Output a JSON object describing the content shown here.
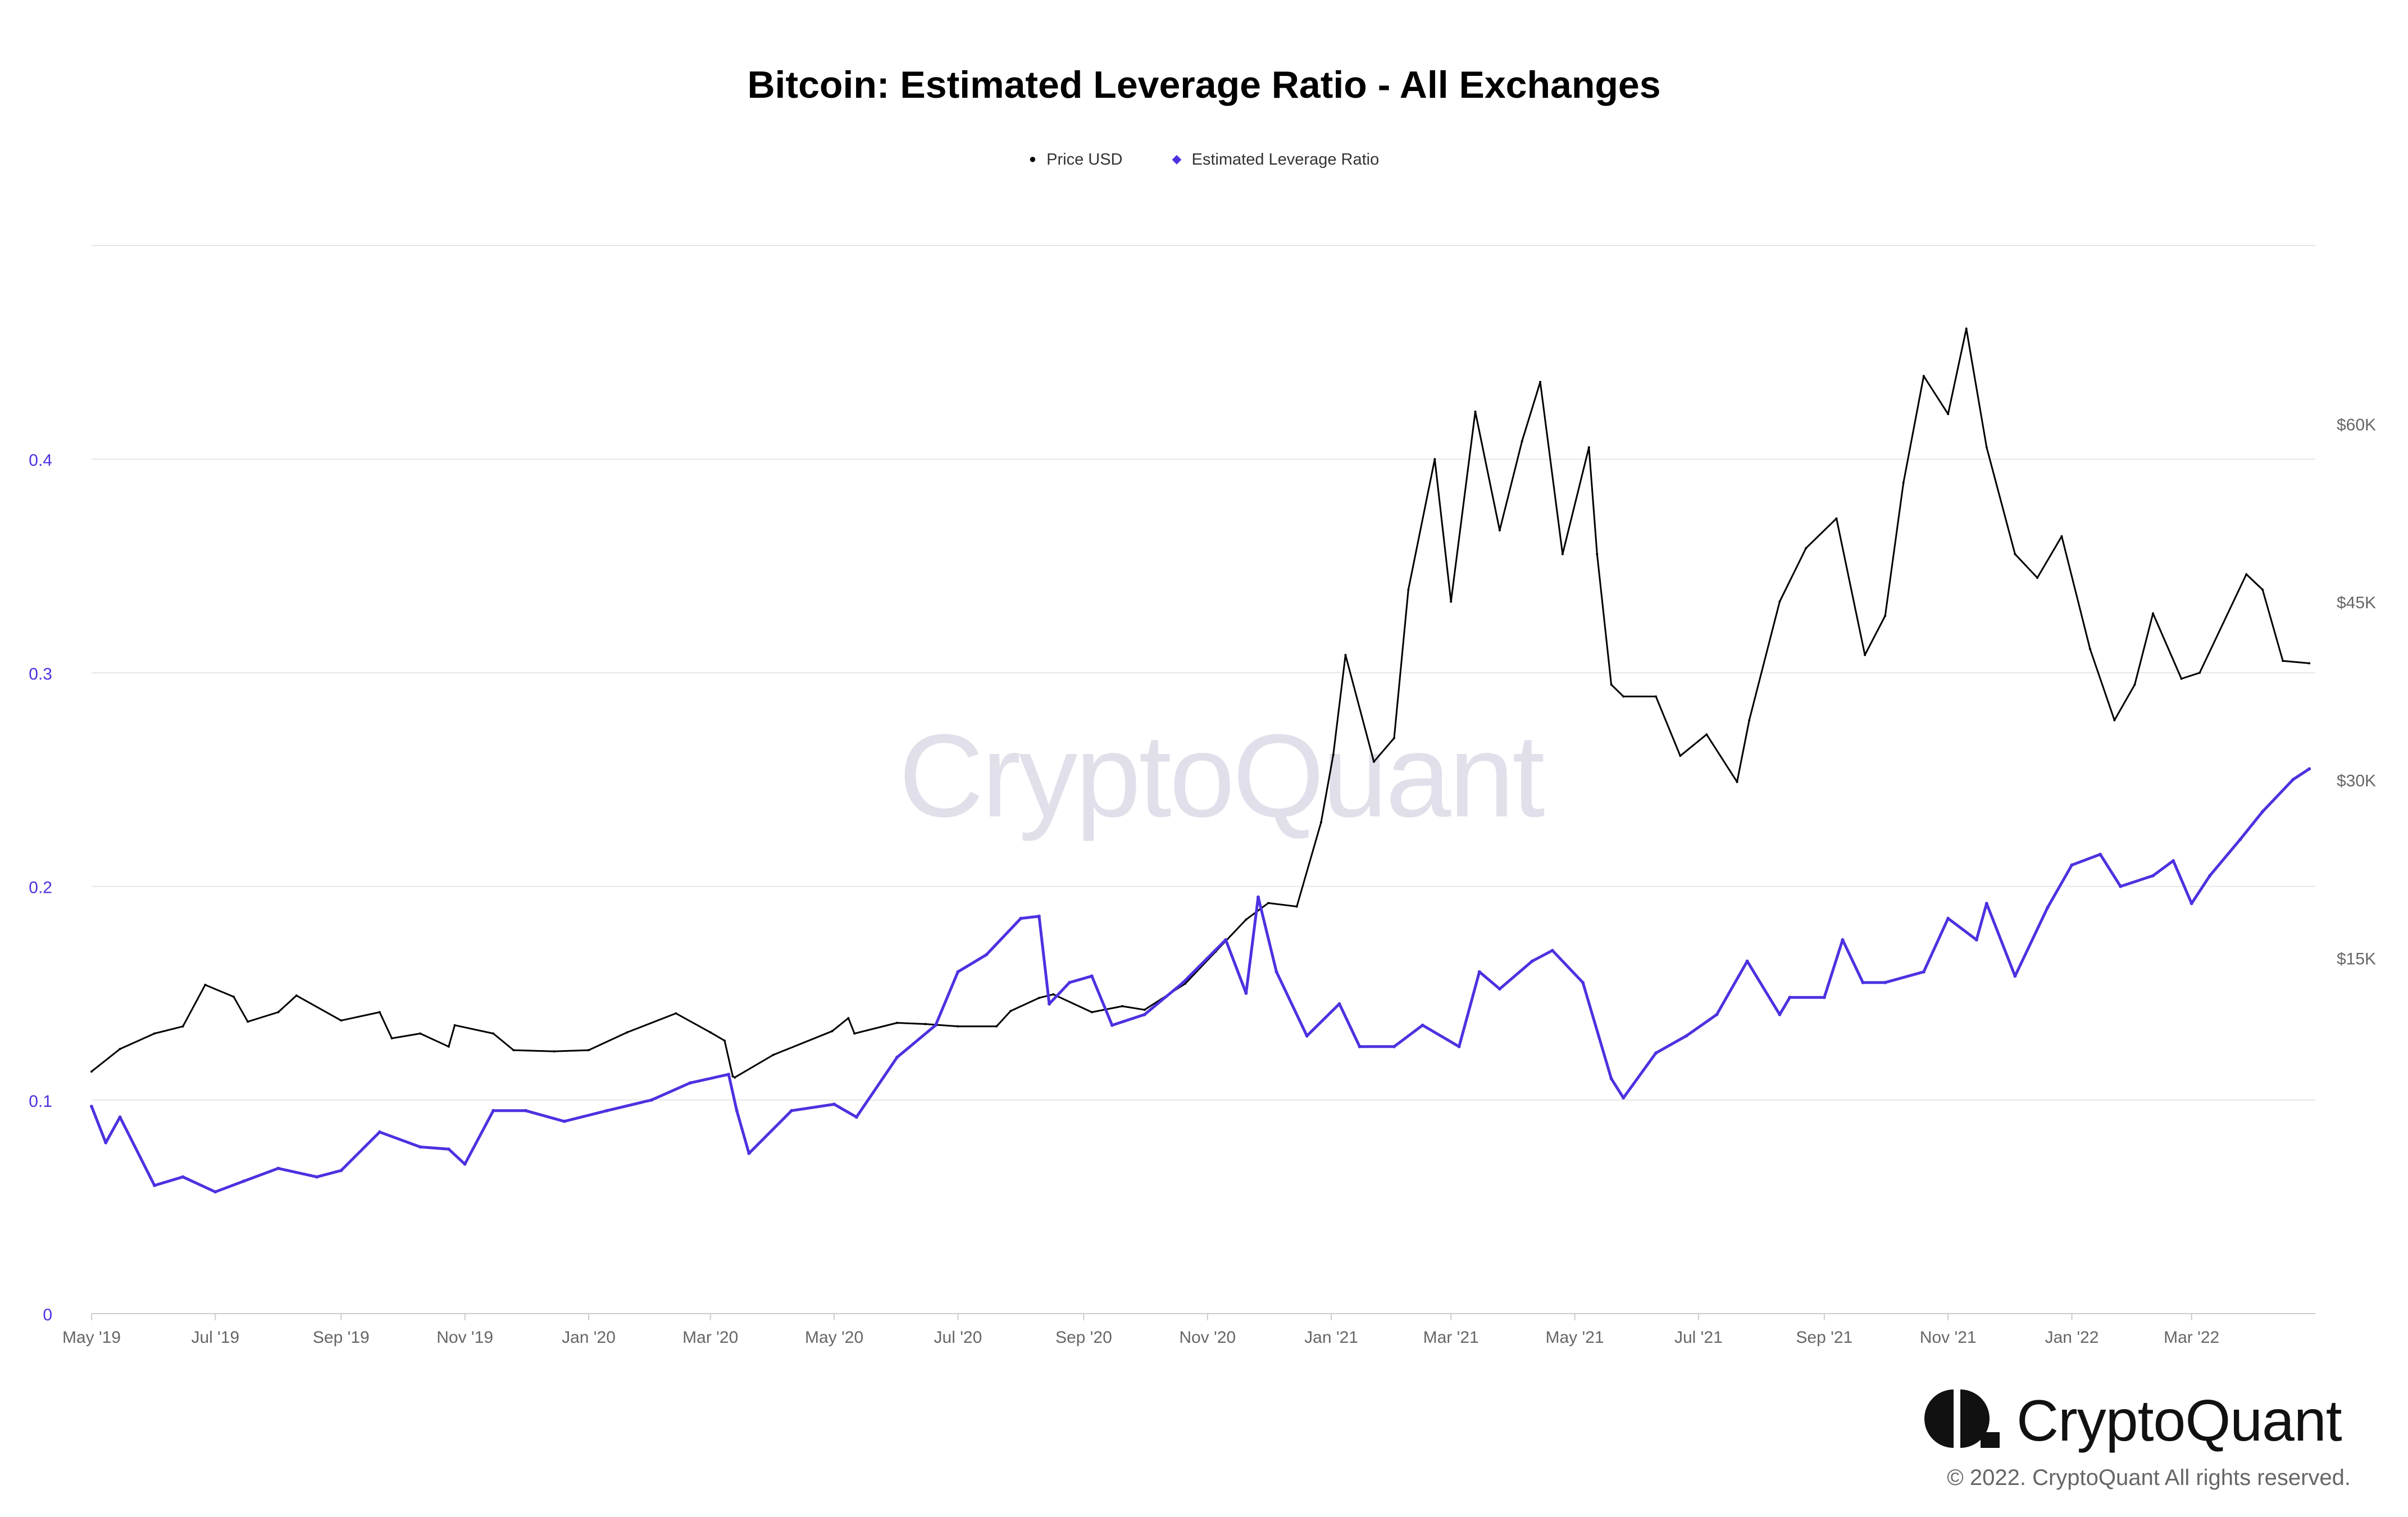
{
  "branding": {
    "watermark": "CryptoQuant",
    "logo_text": "CryptoQuant",
    "logo_icon": "cryptoquant-logo-icon",
    "copyright": "© 2022. CryptoQuant All rights reserved."
  },
  "chart_data": {
    "type": "line",
    "title": "Bitcoin: Estimated Leverage Ratio - All Exchanges",
    "xlabel": "",
    "ylabel_left": "",
    "ylabel_right": "",
    "legend_position": "top-center",
    "grid": true,
    "x_ticks": [
      "May '19",
      "Jul '19",
      "Sep '19",
      "Nov '19",
      "Jan '20",
      "Mar '20",
      "May '20",
      "Jul '20",
      "Sep '20",
      "Nov '20",
      "Jan '21",
      "Mar '21",
      "May '21",
      "Jul '21",
      "Sep '21",
      "Nov '21",
      "Jan '22",
      "Mar '22"
    ],
    "x_range": [
      "2019-05-01",
      "2022-05-01"
    ],
    "y_left": {
      "ticks": [
        "0",
        "0.1",
        "0.2",
        "0.3",
        "0.4"
      ],
      "range": [
        0,
        0.5
      ]
    },
    "y_right": {
      "ticks": [
        "$15K",
        "$30K",
        "$45K",
        "$60K"
      ],
      "range": [
        -15000,
        75000
      ]
    },
    "colors": {
      "price": "#000000",
      "leverage": "#4b32e0",
      "left_axis_labels": "#4b32e0",
      "right_axis_labels": "#666666",
      "grid": "#e6e6e6"
    },
    "series": [
      {
        "name": "Price USD",
        "axis": "right",
        "x": [
          "2019-05-01",
          "2019-05-15",
          "2019-06-01",
          "2019-06-15",
          "2019-06-26",
          "2019-07-10",
          "2019-07-17",
          "2019-08-01",
          "2019-08-10",
          "2019-09-01",
          "2019-09-20",
          "2019-09-26",
          "2019-10-10",
          "2019-10-24",
          "2019-10-27",
          "2019-11-15",
          "2019-11-25",
          "2019-12-15",
          "2020-01-01",
          "2020-01-20",
          "2020-02-13",
          "2020-03-01",
          "2020-03-08",
          "2020-03-12",
          "2020-03-13",
          "2020-04-01",
          "2020-04-30",
          "2020-05-08",
          "2020-05-11",
          "2020-06-01",
          "2020-06-15",
          "2020-07-01",
          "2020-07-20",
          "2020-07-27",
          "2020-08-10",
          "2020-08-17",
          "2020-09-05",
          "2020-09-20",
          "2020-10-01",
          "2020-10-21",
          "2020-11-05",
          "2020-11-20",
          "2020-12-01",
          "2020-12-15",
          "2020-12-27",
          "2021-01-02",
          "2021-01-08",
          "2021-01-22",
          "2021-02-01",
          "2021-02-08",
          "2021-02-21",
          "2021-03-01",
          "2021-03-13",
          "2021-03-25",
          "2021-04-05",
          "2021-04-14",
          "2021-04-25",
          "2021-05-08",
          "2021-05-12",
          "2021-05-19",
          "2021-05-25",
          "2021-06-10",
          "2021-06-22",
          "2021-07-05",
          "2021-07-20",
          "2021-07-26",
          "2021-08-10",
          "2021-08-23",
          "2021-09-07",
          "2021-09-21",
          "2021-10-01",
          "2021-10-10",
          "2021-10-20",
          "2021-11-01",
          "2021-11-10",
          "2021-11-20",
          "2021-12-04",
          "2021-12-15",
          "2021-12-27",
          "2022-01-10",
          "2022-01-22",
          "2022-02-01",
          "2022-02-10",
          "2022-02-24",
          "2022-03-05",
          "2022-03-28",
          "2022-04-05",
          "2022-04-15",
          "2022-04-28"
        ],
        "values": [
          5400,
          7300,
          8600,
          9200,
          12700,
          11700,
          9600,
          10400,
          11800,
          9700,
          10400,
          8200,
          8600,
          7500,
          9300,
          8600,
          7200,
          7100,
          7200,
          8700,
          10300,
          8700,
          8000,
          5000,
          4900,
          6800,
          8800,
          9900,
          8600,
          9500,
          9400,
          9200,
          9200,
          10500,
          11600,
          11900,
          10400,
          10900,
          10600,
          12800,
          15500,
          18200,
          19600,
          19300,
          26400,
          32100,
          40500,
          31500,
          33500,
          46000,
          57000,
          45000,
          61000,
          51000,
          58500,
          63500,
          49000,
          58000,
          49000,
          38000,
          37000,
          37000,
          32000,
          33800,
          29800,
          35000,
          45000,
          49500,
          52000,
          40500,
          43800,
          55000,
          64000,
          60800,
          68000,
          58000,
          49000,
          47000,
          50500,
          41000,
          35000,
          38000,
          44000,
          38500,
          39000,
          47300,
          46000,
          40000,
          39800
        ]
      },
      {
        "name": "Estimated Leverage Ratio",
        "axis": "left",
        "x": [
          "2019-05-01",
          "2019-05-08",
          "2019-05-15",
          "2019-06-01",
          "2019-06-15",
          "2019-07-01",
          "2019-07-15",
          "2019-08-01",
          "2019-08-20",
          "2019-09-01",
          "2019-09-20",
          "2019-10-10",
          "2019-10-24",
          "2019-11-01",
          "2019-11-15",
          "2019-12-01",
          "2019-12-20",
          "2020-01-10",
          "2020-02-01",
          "2020-02-20",
          "2020-03-10",
          "2020-03-14",
          "2020-03-20",
          "2020-04-10",
          "2020-05-01",
          "2020-05-12",
          "2020-06-01",
          "2020-06-20",
          "2020-07-01",
          "2020-07-15",
          "2020-08-01",
          "2020-08-10",
          "2020-08-15",
          "2020-08-25",
          "2020-09-05",
          "2020-09-15",
          "2020-10-01",
          "2020-10-20",
          "2020-11-10",
          "2020-11-20",
          "2020-11-26",
          "2020-12-05",
          "2020-12-20",
          "2021-01-05",
          "2021-01-15",
          "2021-02-01",
          "2021-02-15",
          "2021-03-05",
          "2021-03-15",
          "2021-03-25",
          "2021-04-10",
          "2021-04-20",
          "2021-05-05",
          "2021-05-19",
          "2021-05-25",
          "2021-06-10",
          "2021-06-25",
          "2021-07-10",
          "2021-07-25",
          "2021-08-10",
          "2021-08-15",
          "2021-09-01",
          "2021-09-10",
          "2021-09-20",
          "2021-10-01",
          "2021-10-20",
          "2021-11-01",
          "2021-11-15",
          "2021-11-20",
          "2021-12-04",
          "2021-12-20",
          "2022-01-01",
          "2022-01-15",
          "2022-01-25",
          "2022-02-10",
          "2022-02-20",
          "2022-03-01",
          "2022-03-10",
          "2022-03-25",
          "2022-04-05",
          "2022-04-20",
          "2022-04-28"
        ],
        "values": [
          0.097,
          0.08,
          0.092,
          0.06,
          0.064,
          0.057,
          0.062,
          0.068,
          0.064,
          0.067,
          0.085,
          0.078,
          0.077,
          0.07,
          0.095,
          0.095,
          0.09,
          0.095,
          0.1,
          0.108,
          0.112,
          0.095,
          0.075,
          0.095,
          0.098,
          0.092,
          0.12,
          0.135,
          0.16,
          0.168,
          0.185,
          0.186,
          0.145,
          0.155,
          0.158,
          0.135,
          0.14,
          0.155,
          0.175,
          0.15,
          0.195,
          0.16,
          0.13,
          0.145,
          0.125,
          0.125,
          0.135,
          0.125,
          0.16,
          0.152,
          0.165,
          0.17,
          0.155,
          0.11,
          0.101,
          0.122,
          0.13,
          0.14,
          0.165,
          0.14,
          0.148,
          0.148,
          0.175,
          0.155,
          0.155,
          0.16,
          0.185,
          0.175,
          0.192,
          0.158,
          0.19,
          0.21,
          0.215,
          0.2,
          0.205,
          0.212,
          0.192,
          0.205,
          0.222,
          0.235,
          0.25,
          0.255
        ]
      }
    ]
  }
}
